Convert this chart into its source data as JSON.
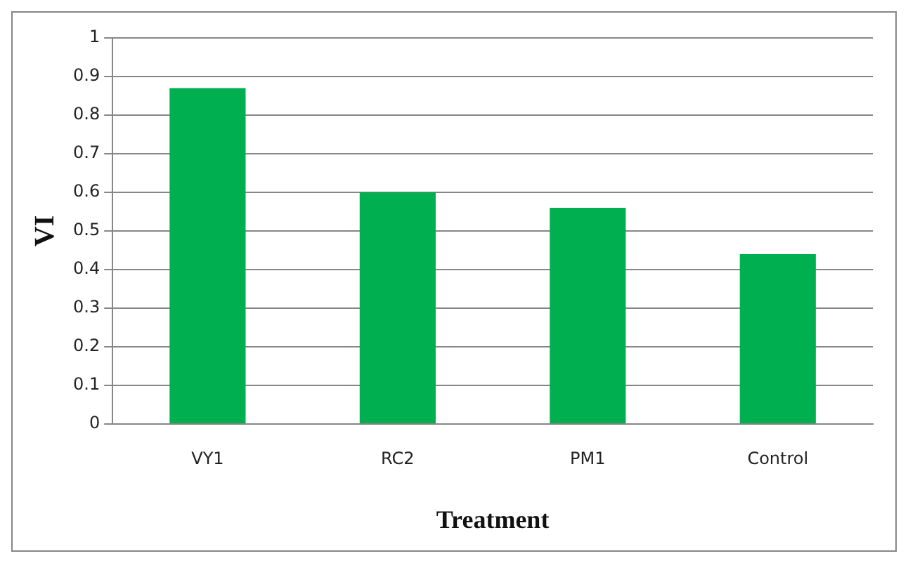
{
  "chart_data": {
    "type": "bar",
    "xlabel": "Treatment",
    "ylabel": "VI",
    "categories": [
      "VY1",
      "RC2",
      "PM1",
      "Control"
    ],
    "values": [
      0.87,
      0.6,
      0.56,
      0.44
    ],
    "color": "#00b050",
    "ylim": [
      0,
      1
    ],
    "yticks": [
      0,
      0.1,
      0.2,
      0.3,
      0.4,
      0.5,
      0.6,
      0.7,
      0.8,
      0.9,
      1
    ],
    "grid": "y",
    "legend": false
  }
}
